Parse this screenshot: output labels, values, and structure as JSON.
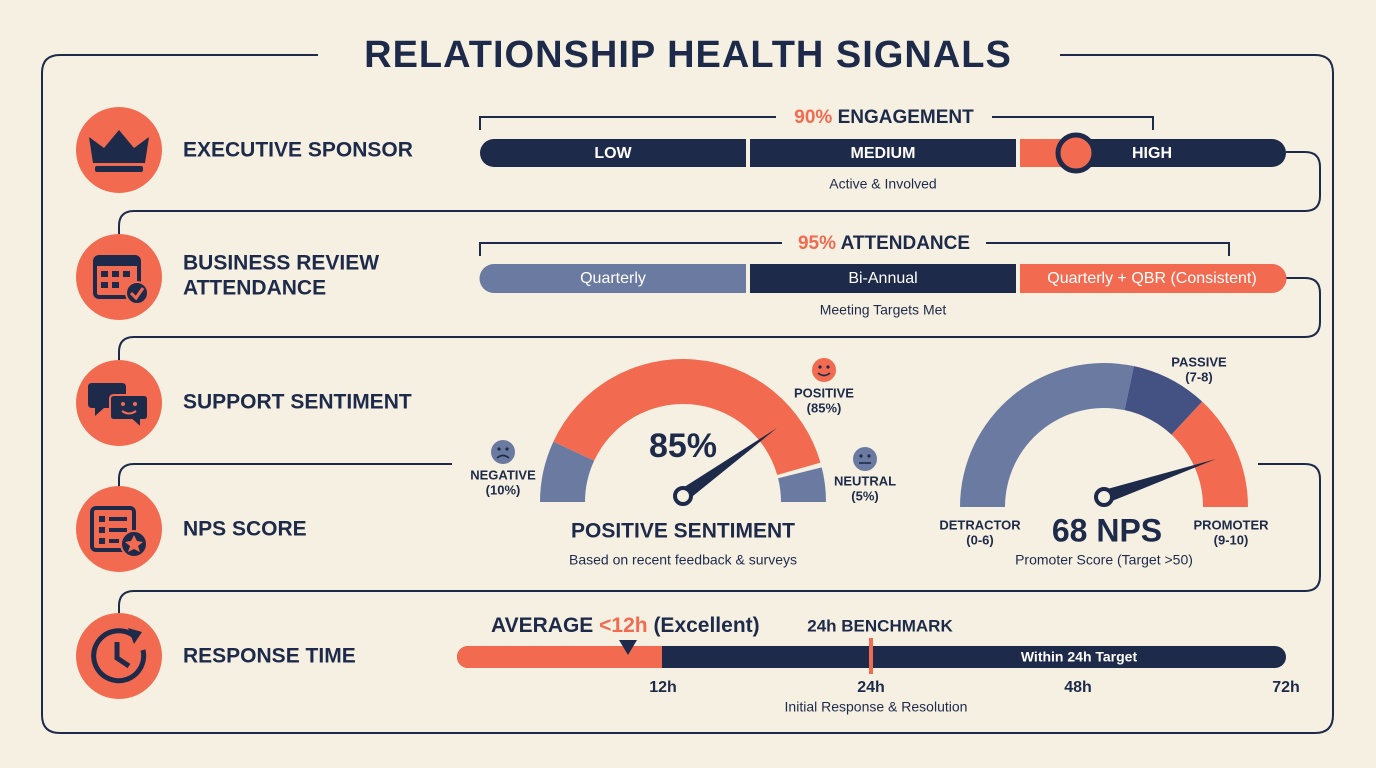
{
  "title": "RELATIONSHIP HEALTH SIGNALS",
  "rows": [
    {
      "label": [
        "EXECUTIVE SPONSOR"
      ]
    },
    {
      "label": [
        "BUSINESS REVIEW",
        "ATTENDANCE"
      ]
    },
    {
      "label": [
        "SUPPORT SENTIMENT"
      ]
    },
    {
      "label": [
        "NPS SCORE"
      ]
    },
    {
      "label": [
        "RESPONSE TIME"
      ]
    }
  ],
  "executive": {
    "headline_value": "90%",
    "headline_text": "ENGAGEMENT",
    "segments": [
      "LOW",
      "MEDIUM",
      "HIGH"
    ],
    "caption": "Active & Involved"
  },
  "business_review": {
    "headline_value": "95%",
    "headline_text": "ATTENDANCE",
    "segments": [
      "Quarterly",
      "Bi-Annual",
      "Quarterly + QBR (Consistent)"
    ],
    "caption": "Meeting Targets Met"
  },
  "sentiment": {
    "center": "85%",
    "title": "POSITIVE SENTIMENT",
    "caption": "Based on recent feedback & surveys",
    "labels": [
      {
        "name": "NEGATIVE",
        "share": "(10%)"
      },
      {
        "name": "POSITIVE",
        "share": "(85%)"
      },
      {
        "name": "NEUTRAL",
        "share": "(5%)"
      }
    ]
  },
  "nps": {
    "center": "68 NPS",
    "caption": "Promoter Score (Target >50)",
    "labels": [
      {
        "name": "DETRACTOR",
        "range": "(0-6)"
      },
      {
        "name": "PASSIVE",
        "range": "(7-8)"
      },
      {
        "name": "PROMOTER",
        "range": "(9-10)"
      }
    ]
  },
  "response": {
    "average_prefix": "AVERAGE",
    "average_value": "<12h",
    "average_suffix": "(Excellent)",
    "benchmark": "24h BENCHMARK",
    "bar_label": "Within 24h Target",
    "ticks": [
      "12h",
      "24h",
      "48h",
      "72h"
    ],
    "caption": "Initial Response & Resolution"
  }
}
